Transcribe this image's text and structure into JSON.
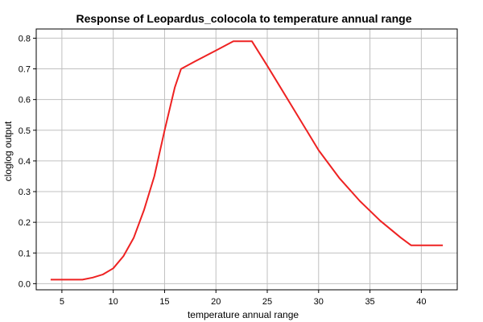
{
  "chart_data": {
    "type": "line",
    "title": "Response of Leopardus_colocola to temperature annual range",
    "xlabel": "temperature annual range",
    "ylabel": "cloglog output",
    "xlim": [
      2.5,
      43.5
    ],
    "ylim": [
      -0.02,
      0.83
    ],
    "xticks": [
      5,
      10,
      15,
      20,
      25,
      30,
      35,
      40
    ],
    "yticks": [
      0.0,
      0.1,
      0.2,
      0.3,
      0.4,
      0.5,
      0.6,
      0.7,
      0.8
    ],
    "ytick_labels": [
      "0.0",
      "0.1",
      "0.2",
      "0.3",
      "0.4",
      "0.5",
      "0.6",
      "0.7",
      "0.8"
    ],
    "grid": true,
    "series": [
      {
        "color": "#ee2222",
        "x": [
          3.9,
          5.0,
          6.0,
          7.0,
          8.0,
          9.0,
          10.0,
          11.0,
          12.0,
          13.0,
          14.0,
          15.0,
          16.0,
          16.6,
          18.0,
          20.0,
          21.7,
          23.5,
          25.0,
          26.0,
          28.0,
          30.0,
          32.0,
          34.0,
          36.0,
          38.0,
          39.0,
          40.0,
          42.1
        ],
        "y": [
          0.013,
          0.013,
          0.013,
          0.013,
          0.02,
          0.03,
          0.05,
          0.09,
          0.15,
          0.24,
          0.35,
          0.5,
          0.64,
          0.7,
          0.725,
          0.76,
          0.79,
          0.79,
          0.71,
          0.655,
          0.545,
          0.435,
          0.345,
          0.27,
          0.205,
          0.15,
          0.125,
          0.125,
          0.125
        ]
      }
    ]
  }
}
